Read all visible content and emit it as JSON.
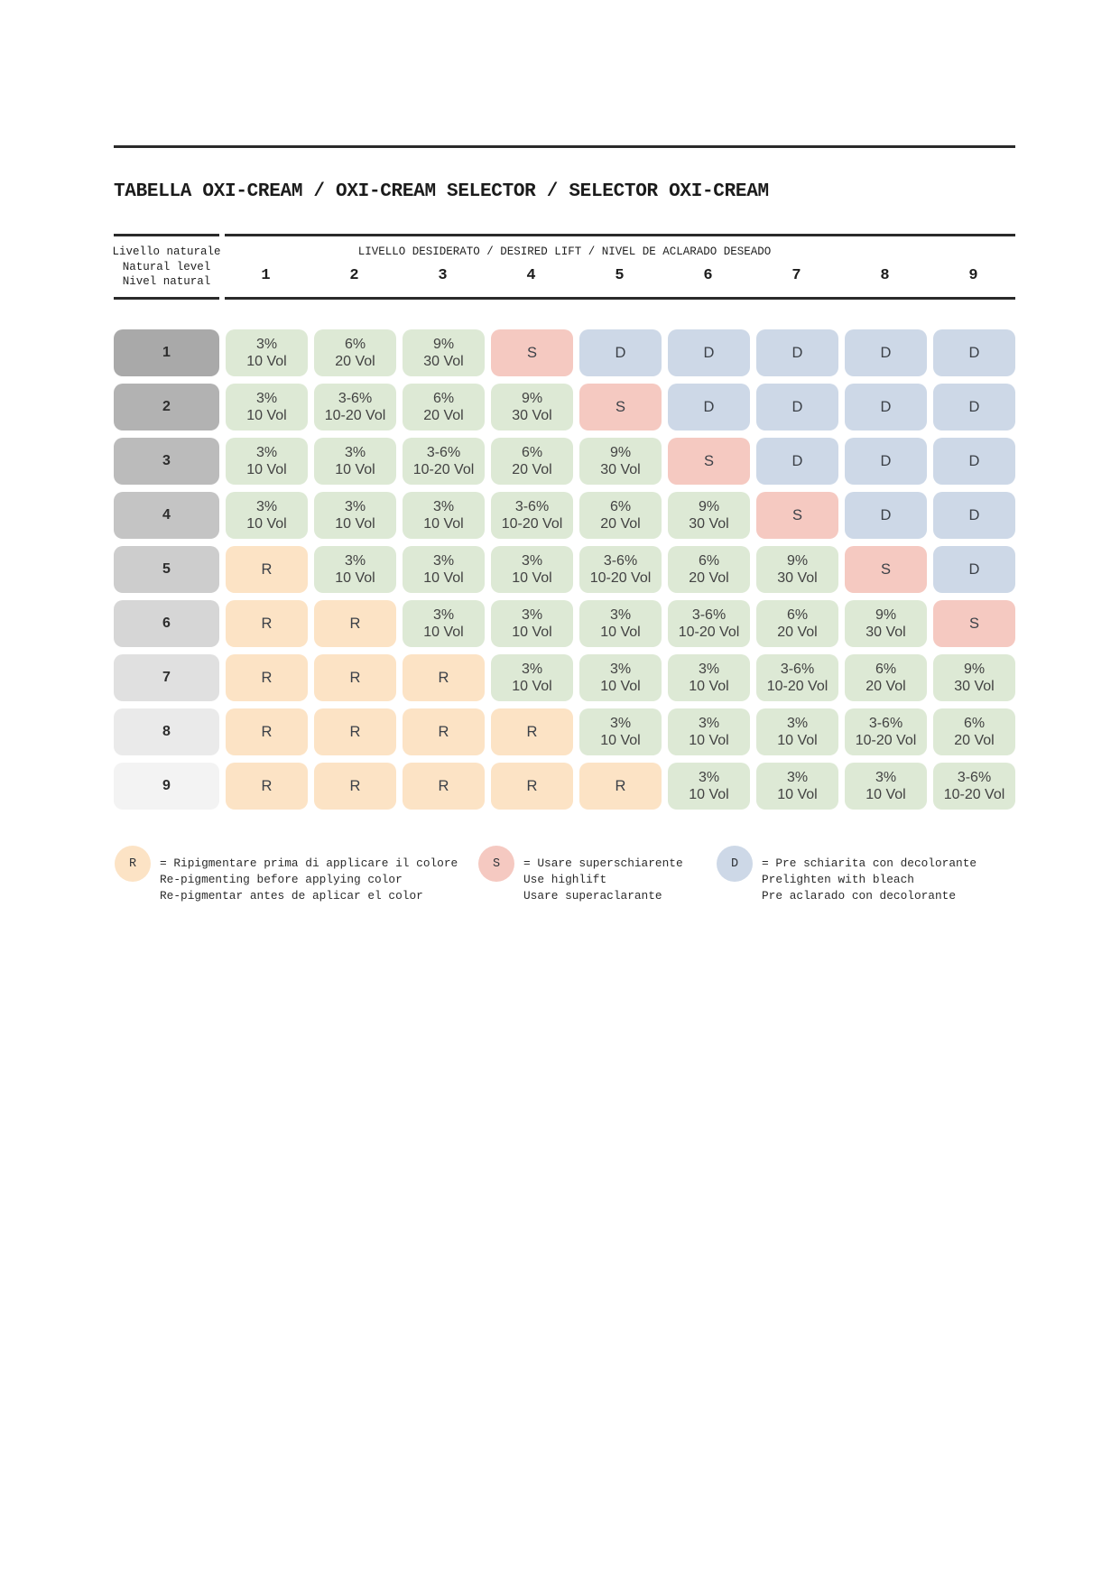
{
  "title": "TABELLA OXI-CREAM / OXI-CREAM SELECTOR / SELECTOR OXI-CREAM",
  "header": {
    "row_label_lines": [
      "Livello naturale",
      "Natural level",
      "Nivel natural"
    ],
    "col_label": "LIVELLO DESIDERATO / DESIRED LIFT / NIVEL DE ACLARADO DESEADO",
    "columns": [
      "1",
      "2",
      "3",
      "4",
      "5",
      "6",
      "7",
      "8",
      "9"
    ]
  },
  "colors": {
    "green": "#dde9d5",
    "peach": "#fce3c5",
    "pink": "#f5c9c1",
    "blue": "#cdd8e7",
    "rule": "#2a2a2a",
    "row_grays": [
      "#a9a9a9",
      "#b2b2b2",
      "#bbbbbb",
      "#c4c4c4",
      "#cdcdcd",
      "#d6d6d6",
      "#e0e0e0",
      "#eaeaea",
      "#f3f3f3"
    ]
  },
  "table": {
    "rows": [
      {
        "level": "1",
        "cells": [
          [
            "3%",
            "10 Vol"
          ],
          [
            "6%",
            "20 Vol"
          ],
          [
            "9%",
            "30 Vol"
          ],
          [
            "S"
          ],
          [
            "D"
          ],
          [
            "D"
          ],
          [
            "D"
          ],
          [
            "D"
          ],
          [
            "D"
          ]
        ]
      },
      {
        "level": "2",
        "cells": [
          [
            "3%",
            "10 Vol"
          ],
          [
            "3-6%",
            "10-20 Vol"
          ],
          [
            "6%",
            "20 Vol"
          ],
          [
            "9%",
            "30 Vol"
          ],
          [
            "S"
          ],
          [
            "D"
          ],
          [
            "D"
          ],
          [
            "D"
          ],
          [
            "D"
          ]
        ]
      },
      {
        "level": "3",
        "cells": [
          [
            "3%",
            "10 Vol"
          ],
          [
            "3%",
            "10 Vol"
          ],
          [
            "3-6%",
            "10-20 Vol"
          ],
          [
            "6%",
            "20 Vol"
          ],
          [
            "9%",
            "30 Vol"
          ],
          [
            "S"
          ],
          [
            "D"
          ],
          [
            "D"
          ],
          [
            "D"
          ]
        ]
      },
      {
        "level": "4",
        "cells": [
          [
            "3%",
            "10 Vol"
          ],
          [
            "3%",
            "10 Vol"
          ],
          [
            "3%",
            "10 Vol"
          ],
          [
            "3-6%",
            "10-20 Vol"
          ],
          [
            "6%",
            "20 Vol"
          ],
          [
            "9%",
            "30 Vol"
          ],
          [
            "S"
          ],
          [
            "D"
          ],
          [
            "D"
          ]
        ]
      },
      {
        "level": "5",
        "cells": [
          [
            "R"
          ],
          [
            "3%",
            "10 Vol"
          ],
          [
            "3%",
            "10 Vol"
          ],
          [
            "3%",
            "10 Vol"
          ],
          [
            "3-6%",
            "10-20 Vol"
          ],
          [
            "6%",
            "20 Vol"
          ],
          [
            "9%",
            "30 Vol"
          ],
          [
            "S"
          ],
          [
            "D"
          ]
        ]
      },
      {
        "level": "6",
        "cells": [
          [
            "R"
          ],
          [
            "R"
          ],
          [
            "3%",
            "10 Vol"
          ],
          [
            "3%",
            "10 Vol"
          ],
          [
            "3%",
            "10 Vol"
          ],
          [
            "3-6%",
            "10-20 Vol"
          ],
          [
            "6%",
            "20 Vol"
          ],
          [
            "9%",
            "30 Vol"
          ],
          [
            "S"
          ]
        ]
      },
      {
        "level": "7",
        "cells": [
          [
            "R"
          ],
          [
            "R"
          ],
          [
            "R"
          ],
          [
            "3%",
            "10 Vol"
          ],
          [
            "3%",
            "10 Vol"
          ],
          [
            "3%",
            "10 Vol"
          ],
          [
            "3-6%",
            "10-20 Vol"
          ],
          [
            "6%",
            "20 Vol"
          ],
          [
            "9%",
            "30 Vol"
          ]
        ]
      },
      {
        "level": "8",
        "cells": [
          [
            "R"
          ],
          [
            "R"
          ],
          [
            "R"
          ],
          [
            "R"
          ],
          [
            "3%",
            "10 Vol"
          ],
          [
            "3%",
            "10 Vol"
          ],
          [
            "3%",
            "10 Vol"
          ],
          [
            "3-6%",
            "10-20 Vol"
          ],
          [
            "6%",
            "20 Vol"
          ]
        ]
      },
      {
        "level": "9",
        "cells": [
          [
            "R"
          ],
          [
            "R"
          ],
          [
            "R"
          ],
          [
            "R"
          ],
          [
            "R"
          ],
          [
            "3%",
            "10 Vol"
          ],
          [
            "3%",
            "10 Vol"
          ],
          [
            "3%",
            "10 Vol"
          ],
          [
            "3-6%",
            "10-20 Vol"
          ]
        ]
      }
    ]
  },
  "legend": [
    {
      "symbol": "R",
      "color_key": "peach",
      "lines": [
        "= Ripigmentare prima di applicare il colore",
        "Re-pigmenting before applying color",
        "Re-pigmentar antes de aplicar el color"
      ]
    },
    {
      "symbol": "S",
      "color_key": "pink",
      "lines": [
        "= Usare superschiarente",
        "Use highlift",
        "Usare superaclarante"
      ]
    },
    {
      "symbol": "D",
      "color_key": "blue",
      "lines": [
        "= Pre schiarita con decolorante",
        "Prelighten with bleach",
        "Pre aclarado con decolorante"
      ]
    }
  ]
}
